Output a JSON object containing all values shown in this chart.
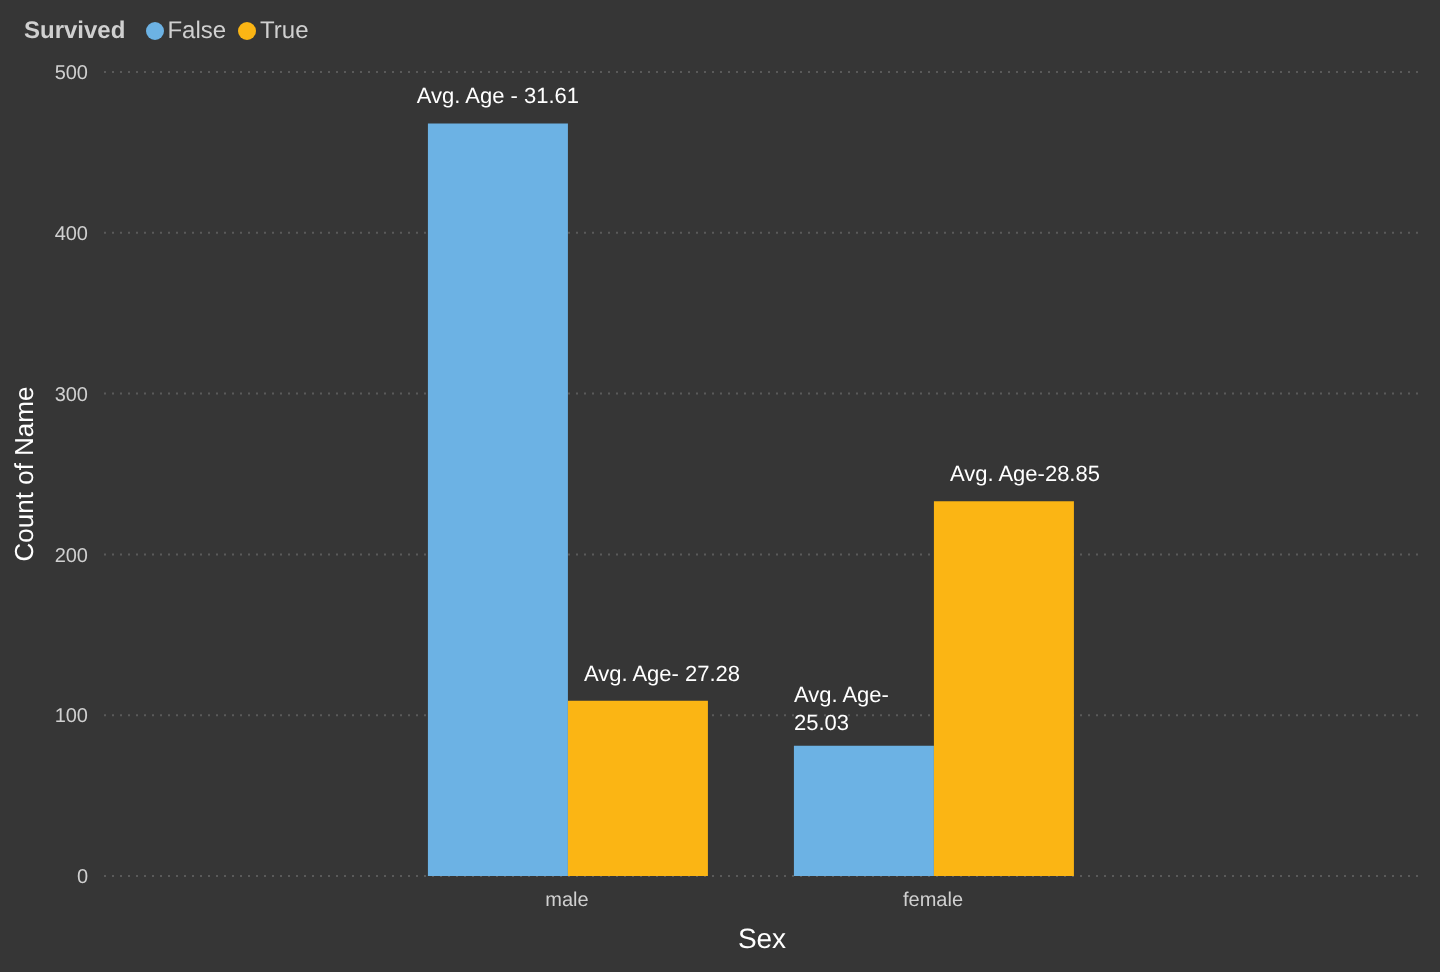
{
  "chart_data": {
    "type": "bar",
    "xlabel": "Sex",
    "ylabel": "Count of Name",
    "legend_title": "Survived",
    "categories": [
      "male",
      "female"
    ],
    "series": [
      {
        "name": "False",
        "color": "#6cb2e4",
        "values": [
          468,
          81
        ]
      },
      {
        "name": "True",
        "color": "#fbb514",
        "values": [
          109,
          233
        ]
      }
    ],
    "annotations": [
      "Avg. Age - 31.61",
      "Avg. Age- 25.03",
      "Avg. Age- 27.28",
      "Avg. Age-28.85"
    ],
    "ylim": [
      0,
      500
    ],
    "yticks": [
      0,
      100,
      200,
      300,
      400,
      500
    ],
    "grid": "y",
    "legend": "top left"
  }
}
